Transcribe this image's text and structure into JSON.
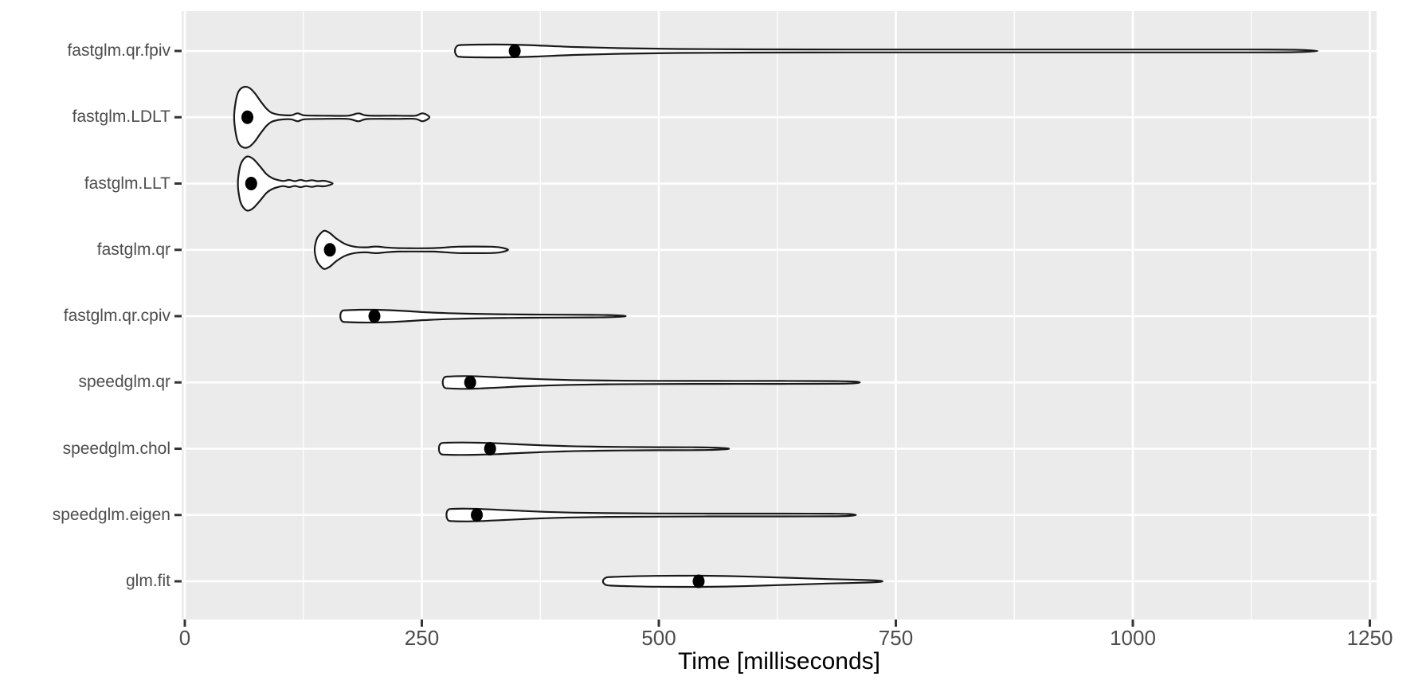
{
  "chart_data": {
    "type": "violin",
    "orientation": "horizontal",
    "title": "",
    "xlabel": "Time [milliseconds]",
    "ylabel": "",
    "x_ticks": [
      0,
      250,
      500,
      750,
      1000,
      1250
    ],
    "x_minor_ticks": [
      125,
      375,
      625,
      875,
      1125
    ],
    "xlim": [
      -4,
      1258
    ],
    "grid": "white major+minor vertical, white major horizontal, on gray panel",
    "legend": "none",
    "categories_top_to_bottom": [
      "fastglm.qr.fpiv",
      "fastglm.LDLT",
      "fastglm.LLT",
      "fastglm.qr",
      "fastglm.qr.cpiv",
      "speedglm.qr",
      "speedglm.chol",
      "speedglm.eigen",
      "glm.fit"
    ],
    "series": [
      {
        "name": "fastglm.qr.fpiv",
        "min_ms": 285,
        "median_ms": 348,
        "max_ms": 1195,
        "profile": [
          [
            285,
            0
          ],
          [
            287,
            6
          ],
          [
            292,
            7.5
          ],
          [
            310,
            8
          ],
          [
            340,
            8
          ],
          [
            370,
            7
          ],
          [
            410,
            5
          ],
          [
            460,
            3.5
          ],
          [
            520,
            2.5
          ],
          [
            600,
            2
          ],
          [
            700,
            1.8
          ],
          [
            850,
            1.8
          ],
          [
            1000,
            1.8
          ],
          [
            1120,
            1.8
          ],
          [
            1170,
            1.5
          ],
          [
            1195,
            0
          ]
        ]
      },
      {
        "name": "fastglm.LDLT",
        "min_ms": 52,
        "median_ms": 66,
        "max_ms": 258,
        "profile": [
          [
            52,
            0
          ],
          [
            54,
            22
          ],
          [
            57,
            33
          ],
          [
            62,
            38
          ],
          [
            68,
            37
          ],
          [
            74,
            30
          ],
          [
            80,
            20
          ],
          [
            86,
            11
          ],
          [
            91,
            6
          ],
          [
            96,
            4
          ],
          [
            102,
            2.8
          ],
          [
            112,
            2.5
          ],
          [
            119,
            5
          ],
          [
            126,
            2.5
          ],
          [
            145,
            2
          ],
          [
            172,
            2
          ],
          [
            183,
            5
          ],
          [
            193,
            2.2
          ],
          [
            225,
            2
          ],
          [
            243,
            2
          ],
          [
            251,
            5
          ],
          [
            258,
            0
          ]
        ]
      },
      {
        "name": "fastglm.LLT",
        "min_ms": 56,
        "median_ms": 70,
        "max_ms": 156,
        "profile": [
          [
            56,
            0
          ],
          [
            58,
            20
          ],
          [
            61,
            29
          ],
          [
            66,
            34
          ],
          [
            72,
            31
          ],
          [
            79,
            22
          ],
          [
            86,
            12
          ],
          [
            92,
            7
          ],
          [
            98,
            4.5
          ],
          [
            104,
            3.2
          ],
          [
            110,
            4.5
          ],
          [
            116,
            3
          ],
          [
            122,
            4.5
          ],
          [
            128,
            3.2
          ],
          [
            134,
            4.2
          ],
          [
            140,
            3
          ],
          [
            146,
            3.5
          ],
          [
            151,
            2.5
          ],
          [
            156,
            0
          ]
        ]
      },
      {
        "name": "fastglm.qr",
        "min_ms": 137,
        "median_ms": 153,
        "max_ms": 341,
        "profile": [
          [
            137,
            0
          ],
          [
            139,
            13
          ],
          [
            142,
            19
          ],
          [
            147,
            24
          ],
          [
            153,
            21
          ],
          [
            160,
            14
          ],
          [
            168,
            8
          ],
          [
            175,
            5
          ],
          [
            182,
            3.5
          ],
          [
            192,
            3.2
          ],
          [
            202,
            4.2
          ],
          [
            212,
            3
          ],
          [
            225,
            2.2
          ],
          [
            245,
            2
          ],
          [
            262,
            2.2
          ],
          [
            275,
            3
          ],
          [
            288,
            4
          ],
          [
            305,
            4.2
          ],
          [
            322,
            4
          ],
          [
            333,
            3
          ],
          [
            341,
            0
          ]
        ]
      },
      {
        "name": "fastglm.qr.cpiv",
        "min_ms": 164,
        "median_ms": 200,
        "max_ms": 465,
        "profile": [
          [
            164,
            0
          ],
          [
            166,
            6.5
          ],
          [
            172,
            7.5
          ],
          [
            185,
            8
          ],
          [
            200,
            8
          ],
          [
            215,
            7.5
          ],
          [
            232,
            6.5
          ],
          [
            252,
            5
          ],
          [
            275,
            3.8
          ],
          [
            300,
            3
          ],
          [
            330,
            2.4
          ],
          [
            365,
            2
          ],
          [
            400,
            1.8
          ],
          [
            430,
            1.6
          ],
          [
            452,
            1.2
          ],
          [
            465,
            0
          ]
        ]
      },
      {
        "name": "speedglm.qr",
        "min_ms": 272,
        "median_ms": 301,
        "max_ms": 712,
        "profile": [
          [
            272,
            0
          ],
          [
            274,
            6.5
          ],
          [
            280,
            7.5
          ],
          [
            295,
            8
          ],
          [
            312,
            7.5
          ],
          [
            330,
            6.5
          ],
          [
            352,
            5.2
          ],
          [
            378,
            4
          ],
          [
            408,
            3
          ],
          [
            445,
            2.4
          ],
          [
            490,
            2
          ],
          [
            560,
            1.8
          ],
          [
            630,
            1.8
          ],
          [
            685,
            1.6
          ],
          [
            705,
            1.2
          ],
          [
            712,
            0
          ]
        ]
      },
      {
        "name": "speedglm.chol",
        "min_ms": 268,
        "median_ms": 322,
        "max_ms": 574,
        "profile": [
          [
            268,
            0
          ],
          [
            270,
            6.5
          ],
          [
            276,
            7.5
          ],
          [
            292,
            7.8
          ],
          [
            310,
            7.5
          ],
          [
            330,
            6.8
          ],
          [
            352,
            5.5
          ],
          [
            378,
            4.2
          ],
          [
            405,
            3.2
          ],
          [
            432,
            2.6
          ],
          [
            462,
            2.2
          ],
          [
            500,
            1.9
          ],
          [
            535,
            1.8
          ],
          [
            558,
            1.4
          ],
          [
            574,
            0
          ]
        ]
      },
      {
        "name": "speedglm.eigen",
        "min_ms": 276,
        "median_ms": 308,
        "max_ms": 708,
        "profile": [
          [
            276,
            0
          ],
          [
            278,
            6.8
          ],
          [
            284,
            7.8
          ],
          [
            298,
            8
          ],
          [
            314,
            7.5
          ],
          [
            332,
            6.5
          ],
          [
            355,
            5.2
          ],
          [
            380,
            4
          ],
          [
            410,
            3
          ],
          [
            448,
            2.4
          ],
          [
            495,
            2
          ],
          [
            560,
            1.8
          ],
          [
            630,
            1.8
          ],
          [
            682,
            1.6
          ],
          [
            700,
            1.2
          ],
          [
            708,
            0
          ]
        ]
      },
      {
        "name": "glm.fit",
        "min_ms": 441,
        "median_ms": 542,
        "max_ms": 736,
        "profile": [
          [
            441,
            0
          ],
          [
            444,
            4.5
          ],
          [
            452,
            5.5
          ],
          [
            470,
            6.2
          ],
          [
            495,
            6.8
          ],
          [
            520,
            7
          ],
          [
            545,
            7
          ],
          [
            570,
            6.6
          ],
          [
            598,
            5.8
          ],
          [
            625,
            4.8
          ],
          [
            652,
            3.8
          ],
          [
            678,
            2.8
          ],
          [
            700,
            2.2
          ],
          [
            718,
            1.6
          ],
          [
            730,
            1
          ],
          [
            736,
            0
          ]
        ]
      }
    ],
    "colors": {
      "panel_bg": "#EBEBEB",
      "grid": "#FFFFFF",
      "violin_fill": "#FFFFFF",
      "violin_outline": "#1A1A1A",
      "median_dot": "#000000",
      "tick_text": "#4D4D4D",
      "axis_title": "#000000",
      "tick_mark": "#333333"
    }
  }
}
